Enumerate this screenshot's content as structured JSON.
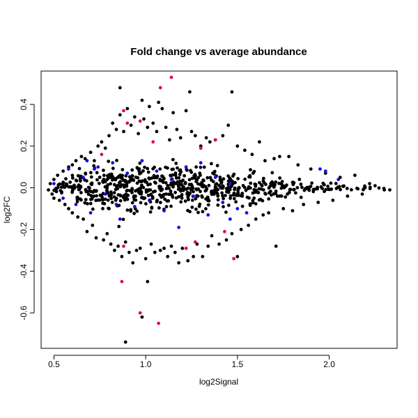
{
  "chart_data": {
    "type": "scatter",
    "title": "Fold change vs average abundance",
    "xlabel": "log2Signal",
    "ylabel": "log2FC",
    "xlim": [
      0.43,
      2.37
    ],
    "ylim": [
      -0.77,
      0.56
    ],
    "xticks": [
      0.5,
      1.0,
      1.5,
      2.0
    ],
    "xtick_labels": [
      "0.5",
      "1.0",
      "1.5",
      "2.0"
    ],
    "yticks": [
      -0.6,
      -0.4,
      -0.2,
      0.0,
      0.2,
      0.4
    ],
    "ytick_labels": [
      "-0.6",
      "-0.4",
      "-0.2",
      "0.0",
      "0.2",
      "0.4"
    ],
    "grid": false,
    "colors": {
      "black": "#000000",
      "red": "#e0103c",
      "blue": "#1010e8"
    },
    "series": [
      {
        "color": "black",
        "points": [
          [
            0.47,
            -0.01
          ],
          [
            0.48,
            0.02
          ],
          [
            0.49,
            -0.03
          ],
          [
            0.5,
            0.04
          ],
          [
            0.5,
            -0.05
          ],
          [
            0.52,
            0.06
          ],
          [
            0.53,
            -0.06
          ],
          [
            0.55,
            0.08
          ],
          [
            0.56,
            -0.08
          ],
          [
            0.58,
            0.1
          ],
          [
            0.58,
            -0.1
          ],
          [
            0.6,
            0.11
          ],
          [
            0.6,
            -0.12
          ],
          [
            0.62,
            0.13
          ],
          [
            0.63,
            -0.14
          ],
          [
            0.65,
            0.15
          ],
          [
            0.66,
            -0.15
          ],
          [
            0.67,
            0.14
          ],
          [
            0.68,
            -0.21
          ],
          [
            0.7,
            0.17
          ],
          [
            0.71,
            -0.18
          ],
          [
            0.72,
            0.13
          ],
          [
            0.73,
            -0.24
          ],
          [
            0.74,
            0.2
          ],
          [
            0.76,
            0.22
          ],
          [
            0.77,
            -0.25
          ],
          [
            0.78,
            0.19
          ],
          [
            0.79,
            -0.22
          ],
          [
            0.8,
            0.25
          ],
          [
            0.81,
            -0.27
          ],
          [
            0.82,
            0.31
          ],
          [
            0.83,
            -0.3
          ],
          [
            0.84,
            0.28
          ],
          [
            0.85,
            -0.28
          ],
          [
            0.86,
            0.35
          ],
          [
            0.86,
            0.48
          ],
          [
            0.87,
            -0.33
          ],
          [
            0.88,
            0.27
          ],
          [
            0.89,
            -0.26
          ],
          [
            0.9,
            0.38
          ],
          [
            0.91,
            -0.31
          ],
          [
            0.92,
            0.3
          ],
          [
            0.93,
            -0.36
          ],
          [
            0.94,
            0.34
          ],
          [
            0.95,
            -0.3
          ],
          [
            0.96,
            0.26
          ],
          [
            0.97,
            -0.29
          ],
          [
            0.98,
            0.42
          ],
          [
            0.98,
            -0.62
          ],
          [
            0.99,
            0.33
          ],
          [
            1.0,
            -0.34
          ],
          [
            1.01,
            0.29
          ],
          [
            1.01,
            -0.45
          ],
          [
            1.02,
            0.39
          ],
          [
            1.03,
            -0.27
          ],
          [
            1.04,
            0.31
          ],
          [
            1.05,
            -0.31
          ],
          [
            1.06,
            0.27
          ],
          [
            1.07,
            0.41
          ],
          [
            1.08,
            -0.3
          ],
          [
            1.09,
            0.38
          ],
          [
            1.1,
            -0.29
          ],
          [
            1.11,
            0.29
          ],
          [
            1.12,
            -0.33
          ],
          [
            1.13,
            0.23
          ],
          [
            1.14,
            -0.28
          ],
          [
            1.15,
            0.36
          ],
          [
            1.16,
            -0.31
          ],
          [
            1.17,
            0.28
          ],
          [
            1.18,
            -0.36
          ],
          [
            1.19,
            0.24
          ],
          [
            1.2,
            -0.29
          ],
          [
            1.22,
            0.37
          ],
          [
            1.23,
            -0.35
          ],
          [
            1.24,
            0.46
          ],
          [
            1.25,
            0.27
          ],
          [
            1.26,
            -0.33
          ],
          [
            1.27,
            0.25
          ],
          [
            1.28,
            -0.27
          ],
          [
            1.3,
            0.2
          ],
          [
            1.31,
            -0.33
          ],
          [
            1.33,
            0.24
          ],
          [
            1.34,
            -0.28
          ],
          [
            1.35,
            0.22
          ],
          [
            1.36,
            -0.23
          ],
          [
            1.38,
            0.23
          ],
          [
            1.4,
            -0.27
          ],
          [
            1.42,
            0.25
          ],
          [
            1.44,
            -0.25
          ],
          [
            1.45,
            0.3
          ],
          [
            1.47,
            0.46
          ],
          [
            1.47,
            -0.22
          ],
          [
            1.5,
            0.2
          ],
          [
            1.5,
            -0.33
          ],
          [
            1.52,
            -0.2
          ],
          [
            1.54,
            0.18
          ],
          [
            1.56,
            -0.18
          ],
          [
            1.58,
            0.16
          ],
          [
            1.6,
            -0.15
          ],
          [
            1.62,
            0.22
          ],
          [
            1.64,
            -0.13
          ],
          [
            1.65,
            0.13
          ],
          [
            1.67,
            -0.12
          ],
          [
            1.7,
            0.14
          ],
          [
            1.71,
            -0.28
          ],
          [
            1.73,
            0.15
          ],
          [
            1.75,
            -0.1
          ],
          [
            1.78,
            0.15
          ],
          [
            1.8,
            -0.11
          ],
          [
            1.83,
            0.11
          ],
          [
            1.86,
            -0.08
          ],
          [
            1.9,
            0.09
          ],
          [
            1.94,
            -0.07
          ],
          [
            1.98,
            0.07
          ],
          [
            2.02,
            -0.06
          ],
          [
            2.06,
            0.05
          ],
          [
            2.1,
            -0.04
          ],
          [
            2.14,
            0.06
          ],
          [
            2.18,
            -0.03
          ],
          [
            2.22,
            0.02
          ],
          [
            2.25,
            0.01
          ],
          [
            2.3,
            -0.01
          ],
          [
            2.33,
            -0.01
          ],
          [
            0.89,
            -0.74
          ]
        ]
      },
      {
        "color": "red",
        "points": [
          [
            1.14,
            0.53
          ],
          [
            1.08,
            0.48
          ],
          [
            0.88,
            0.37
          ],
          [
            0.9,
            0.31
          ],
          [
            0.97,
            0.32
          ],
          [
            1.38,
            0.23
          ],
          [
            1.3,
            0.19
          ],
          [
            1.04,
            0.22
          ],
          [
            0.76,
            0.16
          ],
          [
            0.88,
            -0.28
          ],
          [
            1.27,
            -0.26
          ],
          [
            1.22,
            -0.29
          ],
          [
            1.43,
            -0.21
          ],
          [
            1.48,
            -0.34
          ],
          [
            0.87,
            -0.45
          ],
          [
            0.97,
            -0.6
          ],
          [
            1.07,
            -0.65
          ]
        ]
      },
      {
        "color": "blue",
        "points": [
          [
            0.5,
            0.02
          ],
          [
            0.55,
            -0.05
          ],
          [
            0.58,
            0.09
          ],
          [
            0.62,
            -0.08
          ],
          [
            0.66,
            0.05
          ],
          [
            0.7,
            -0.12
          ],
          [
            0.74,
            0.1
          ],
          [
            0.78,
            -0.03
          ],
          [
            0.82,
            0.12
          ],
          [
            0.86,
            -0.15
          ],
          [
            0.9,
            0.07
          ],
          [
            0.94,
            -0.09
          ],
          [
            0.98,
            0.13
          ],
          [
            1.02,
            -0.06
          ],
          [
            1.06,
            0.08
          ],
          [
            1.1,
            -0.11
          ],
          [
            1.14,
            0.04
          ],
          [
            1.18,
            -0.19
          ],
          [
            1.22,
            0.1
          ],
          [
            1.26,
            -0.04
          ],
          [
            1.3,
            0.12
          ],
          [
            1.34,
            -0.13
          ],
          [
            1.38,
            0.05
          ],
          [
            1.42,
            -0.07
          ],
          [
            1.46,
            0.02
          ],
          [
            1.5,
            -0.1
          ],
          [
            1.55,
            -0.12
          ],
          [
            1.95,
            0.09
          ],
          [
            1.98,
            0.08
          ],
          [
            2.05,
            0.04
          ],
          [
            0.68,
            0.13
          ],
          [
            0.72,
            0.09
          ],
          [
            0.84,
            -0.08
          ],
          [
            1.46,
            -0.15
          ]
        ]
      }
    ],
    "dense_core": {
      "color": "black",
      "description_center": [
        [
          0.5,
          0.0,
          0.035
        ],
        [
          0.6,
          0.0,
          0.07
        ],
        [
          0.7,
          0.0,
          0.1
        ],
        [
          0.8,
          0.0,
          0.12
        ],
        [
          0.9,
          0.0,
          0.13
        ],
        [
          1.0,
          0.0,
          0.13
        ],
        [
          1.1,
          0.0,
          0.12
        ],
        [
          1.2,
          0.0,
          0.12
        ],
        [
          1.3,
          0.0,
          0.11
        ],
        [
          1.4,
          0.0,
          0.1
        ],
        [
          1.5,
          0.0,
          0.085
        ],
        [
          1.6,
          0.0,
          0.07
        ],
        [
          1.7,
          0.0,
          0.055
        ],
        [
          1.8,
          0.0,
          0.045
        ],
        [
          1.9,
          0.0,
          0.035
        ],
        [
          2.0,
          0.0,
          0.025
        ],
        [
          2.1,
          0.0,
          0.02
        ],
        [
          2.2,
          0.0,
          0.012
        ],
        [
          2.3,
          0.0,
          0.005
        ]
      ]
    }
  }
}
